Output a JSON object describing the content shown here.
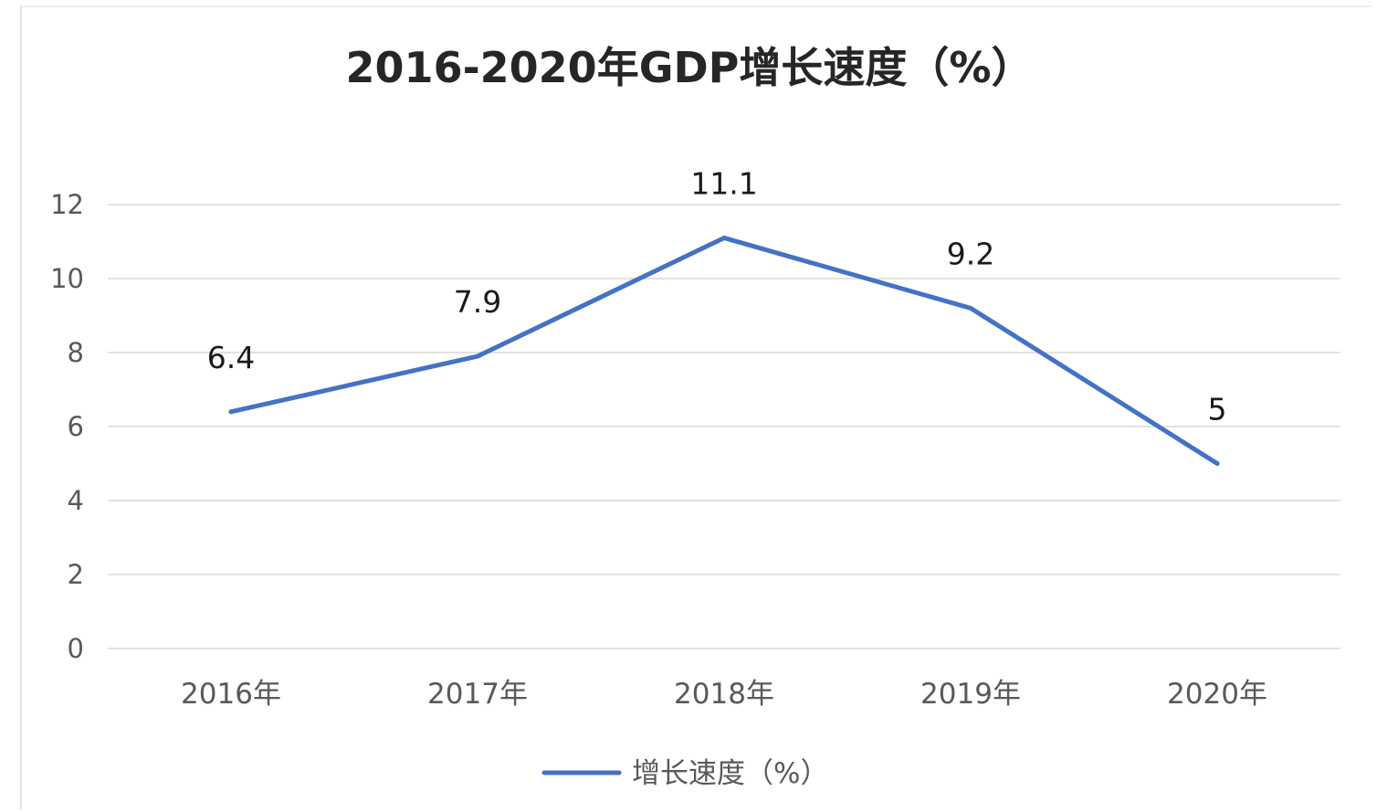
{
  "chart_data": {
    "type": "line",
    "title": "2016-2020年GDP增长速度（%）",
    "categories": [
      "2016年",
      "2017年",
      "2018年",
      "2019年",
      "2020年"
    ],
    "series": [
      {
        "name": "增长速度（%）",
        "values": [
          6.4,
          7.9,
          11.1,
          9.2,
          5
        ],
        "value_labels": [
          "6.4",
          "7.9",
          "11.1",
          "9.2",
          "5"
        ],
        "color": "#4472c4"
      }
    ],
    "y_ticks": [
      "0",
      "2",
      "4",
      "6",
      "8",
      "10",
      "12"
    ],
    "ylim": [
      0,
      12
    ],
    "grid": true,
    "legend_position": "bottom"
  }
}
